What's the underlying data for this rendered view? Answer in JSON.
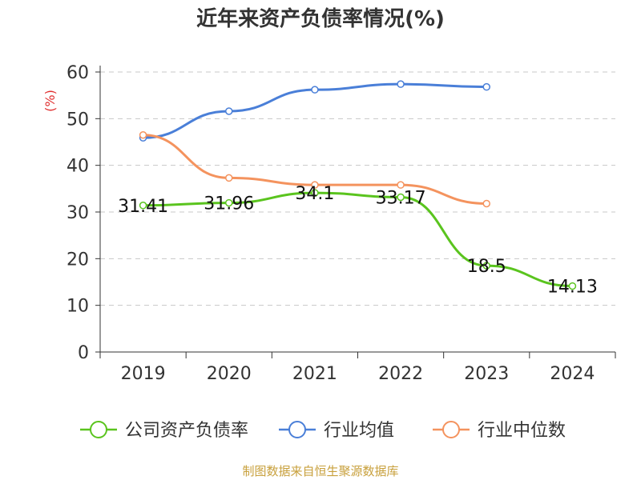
{
  "chart_data": {
    "type": "line",
    "title": "近年来资产负债率情况(%)",
    "ylabel": "(%)",
    "xlabel": "",
    "categories": [
      "2019",
      "2020",
      "2021",
      "2022",
      "2023",
      "2024"
    ],
    "ylim": [
      0,
      60
    ],
    "yticks": [
      0,
      10,
      20,
      30,
      40,
      50,
      60
    ],
    "grid": true,
    "legend_position": "bottom",
    "series": [
      {
        "name": "公司资产负债率",
        "color": "#5ac41e",
        "values": [
          31.41,
          31.96,
          34.1,
          33.17,
          18.5,
          14.13
        ],
        "labels": [
          "31.41",
          "31.96",
          "34.1",
          "33.17",
          "18.5",
          "14.13"
        ]
      },
      {
        "name": "行业均值",
        "color": "#4a7fd8",
        "values": [
          45.9,
          51.6,
          56.2,
          57.4,
          56.8,
          null
        ]
      },
      {
        "name": "行业中位数",
        "color": "#f4935e",
        "values": [
          46.5,
          37.3,
          35.8,
          35.8,
          31.8,
          null
        ]
      }
    ]
  },
  "footer": "制图数据来自恒生聚源数据库"
}
